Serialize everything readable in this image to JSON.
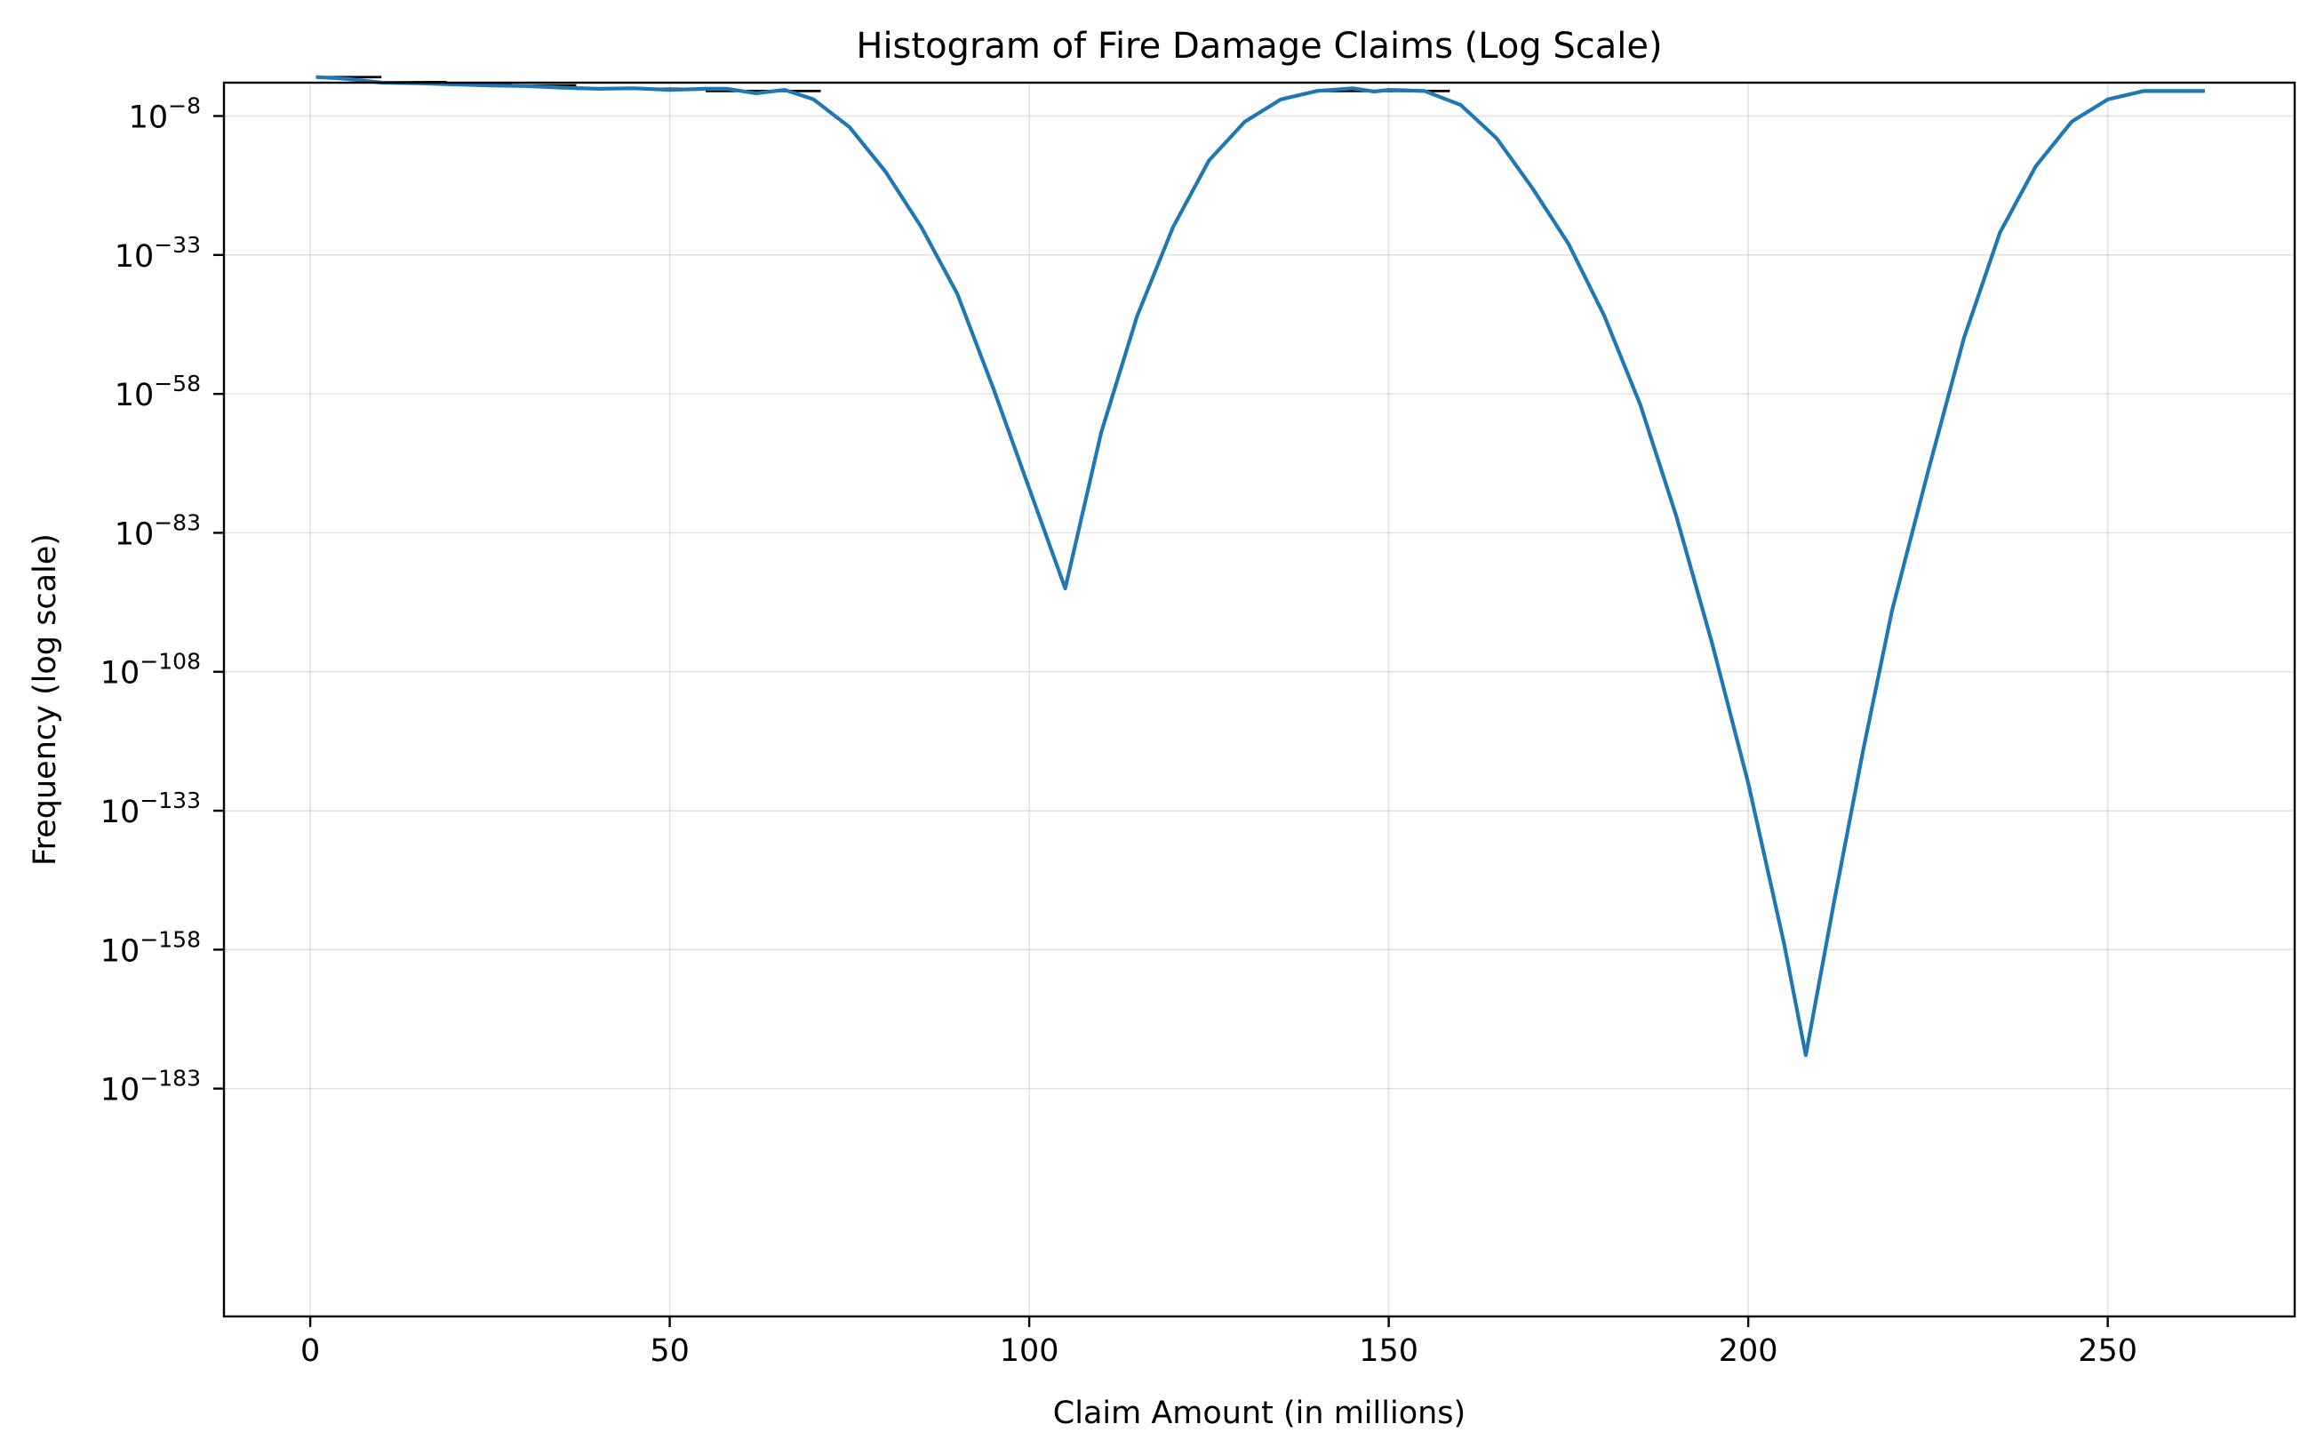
{
  "chart_data": {
    "type": "line",
    "title": "Histogram of Fire Damage Claims (Log Scale)",
    "xlabel": "Claim Amount (in millions)",
    "ylabel": "Frequency (log scale)",
    "xlim": [
      -12,
      276
    ],
    "ylog_lim": [
      -2,
      -224
    ],
    "x_ticks": [
      0,
      50,
      100,
      150,
      200,
      250
    ],
    "x_tick_labels": [
      "0",
      "50",
      "100",
      "150",
      "200",
      "250"
    ],
    "y_ticks": [
      -8,
      -33,
      -58,
      -83,
      -108,
      -133,
      -158,
      -183
    ],
    "y_tick_labels": [
      {
        "base": "10",
        "exp": "−8"
      },
      {
        "base": "10",
        "exp": "−33"
      },
      {
        "base": "10",
        "exp": "−58"
      },
      {
        "base": "10",
        "exp": "−83"
      },
      {
        "base": "10",
        "exp": "−108"
      },
      {
        "base": "10",
        "exp": "−133"
      },
      {
        "base": "10",
        "exp": "−158"
      },
      {
        "base": "10",
        "exp": "−183"
      }
    ],
    "histogram_bars": [
      {
        "x0": 0.8,
        "x1": 9.9,
        "log10_count": -1.0
      },
      {
        "x0": 9.9,
        "x1": 19,
        "log10_count": -1.9
      },
      {
        "x0": 19,
        "x1": 28,
        "log10_count": -2.1
      },
      {
        "x0": 28,
        "x1": 37,
        "log10_count": -2.5
      },
      {
        "x0": 37,
        "x1": 46,
        "log10_count": -3.1
      },
      {
        "x0": 46,
        "x1": 55,
        "log10_count": -3.1
      },
      {
        "x0": 55,
        "x1": 64,
        "log10_count": -3.5
      },
      {
        "x0": 64,
        "x1": 71,
        "log10_count": -3.5
      },
      {
        "x0": 141,
        "x1": 150,
        "log10_count": -3.5
      },
      {
        "x0": 150,
        "x1": 158.5,
        "log10_count": -3.5
      },
      {
        "x0": 254.5,
        "x1": 263.5,
        "log10_count": -3.5
      }
    ],
    "series": [
      {
        "x": [
          0.8,
          5,
          10,
          15,
          20,
          25,
          30,
          35,
          40,
          45,
          50,
          55,
          58,
          62,
          66,
          70,
          75,
          80,
          85,
          90,
          95,
          100,
          105,
          110,
          115,
          120,
          125,
          130,
          135,
          140,
          145,
          148,
          150,
          155,
          160,
          165,
          170,
          175,
          180,
          185,
          190,
          195,
          200,
          205,
          208,
          212,
          216,
          220,
          225,
          230,
          235,
          240,
          245,
          250,
          255,
          260,
          263.5
        ],
        "log10_y": [
          -1.0,
          -1.3,
          -2.0,
          -2.1,
          -2.3,
          -2.5,
          -2.6,
          -2.9,
          -3.1,
          -3.0,
          -3.3,
          -3.1,
          -3.1,
          -3.9,
          -3.3,
          -5.0,
          -10,
          -18,
          -28,
          -40,
          -57,
          -75,
          -93,
          -65,
          -44,
          -28,
          -16,
          -9,
          -5,
          -3.5,
          -3.0,
          -3.6,
          -3.3,
          -3.5,
          -6,
          -12,
          -21,
          -31,
          -44,
          -60,
          -80,
          -103,
          -128,
          -157,
          -177,
          -149,
          -122,
          -97,
          -72,
          -48,
          -29,
          -17,
          -9,
          -5,
          -3.5,
          -3.5,
          -3.5
        ]
      }
    ],
    "grid": true,
    "legend": "none"
  }
}
